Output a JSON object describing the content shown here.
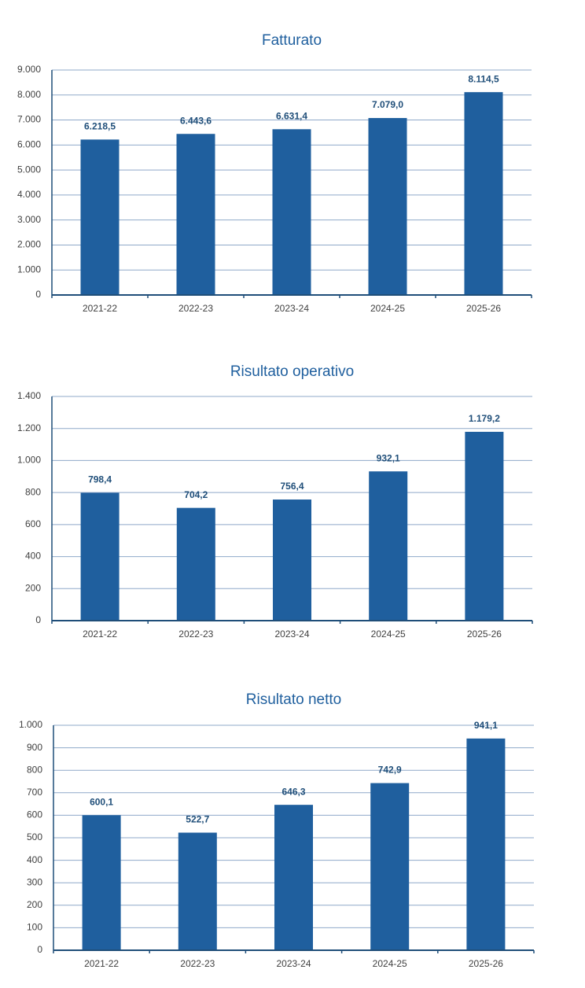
{
  "chart_data": [
    {
      "type": "bar",
      "title": "Fatturato",
      "categories": [
        "2021-22",
        "2022-23",
        "2023-24",
        "2024-25",
        "2025-26"
      ],
      "values": [
        6218.5,
        6443.6,
        6631.4,
        7079.0,
        8114.5
      ],
      "value_labels": [
        "6.218,5",
        "6.443,6",
        "6.631,4",
        "7.079,0",
        "8.114,5"
      ],
      "color": "#1f5f9e",
      "ylim": [
        0,
        9000
      ],
      "yticks": [
        0,
        {
          "value": 1000,
          "label": "1.000"
        },
        {
          "value": 2000,
          "label": "2.000"
        },
        {
          "value": 3000,
          "label": "3.000"
        },
        {
          "value": 4000,
          "label": "4.000"
        },
        {
          "value": 5000,
          "label": "5.000"
        },
        {
          "value": 6000,
          "label": "6.000"
        },
        {
          "value": 7000,
          "label": "7.000"
        },
        {
          "value": 8000,
          "label": "8.000"
        },
        {
          "value": 9000,
          "label": "9.000"
        }
      ],
      "grid": true
    },
    {
      "type": "bar",
      "title": "Risultato operativo",
      "categories": [
        "2021-22",
        "2022-23",
        "2023-24",
        "2024-25",
        "2025-26"
      ],
      "values": [
        798.4,
        704.2,
        756.4,
        932.1,
        1179.2
      ],
      "value_labels": [
        "798,4",
        "704,2",
        "756,4",
        "932,1",
        "1.179,2"
      ],
      "color": "#1f5f9e",
      "ylim": [
        0,
        1400
      ],
      "yticks": [
        0,
        200,
        400,
        600,
        800,
        {
          "value": 1000,
          "label": "1.000"
        },
        {
          "value": 1200,
          "label": "1.200"
        },
        {
          "value": 1400,
          "label": "1.400"
        }
      ],
      "grid": true
    },
    {
      "type": "bar",
      "title": "Risultato netto",
      "categories": [
        "2021-22",
        "2022-23",
        "2023-24",
        "2024-25",
        "2025-26"
      ],
      "values": [
        600.1,
        522.7,
        646.3,
        742.9,
        941.1
      ],
      "value_labels": [
        "600,1",
        "522,7",
        "646,3",
        "742,9",
        "941,1"
      ],
      "color": "#1f5f9e",
      "ylim": [
        0,
        1000
      ],
      "yticks": [
        0,
        100,
        200,
        300,
        400,
        500,
        600,
        700,
        800,
        900,
        {
          "value": 1000,
          "label": "1.000"
        }
      ],
      "grid": true
    }
  ]
}
